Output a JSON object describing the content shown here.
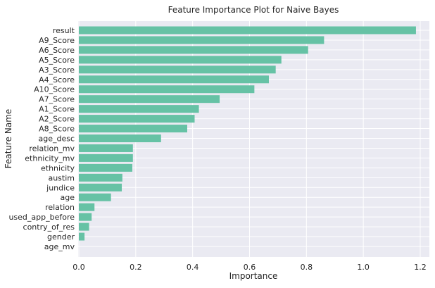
{
  "chart_data": {
    "type": "bar",
    "orientation": "horizontal",
    "title": "Feature Importance Plot for Naive Bayes",
    "xlabel": "Importance",
    "ylabel": "Feature Name",
    "xlim": [
      0,
      1.24
    ],
    "xticks": [
      0.0,
      0.2,
      0.4,
      0.6,
      0.8,
      1.0,
      1.2
    ],
    "xtick_labels": [
      "0.0",
      "0.2",
      "0.4",
      "0.6",
      "0.8",
      "1.0",
      "1.2"
    ],
    "grid": true,
    "categories": [
      "result",
      "A9_Score",
      "A6_Score",
      "A5_Score",
      "A3_Score",
      "A4_Score",
      "A10_Score",
      "A7_Score",
      "A1_Score",
      "A2_Score",
      "A8_Score",
      "age_desc",
      "relation_mv",
      "ethnicity_mv",
      "ethnicity",
      "austim",
      "jundice",
      "age",
      "relation",
      "used_app_before",
      "contry_of_res",
      "gender",
      "age_mv"
    ],
    "values": [
      1.185,
      0.862,
      0.806,
      0.712,
      0.692,
      0.668,
      0.617,
      0.495,
      0.422,
      0.407,
      0.381,
      0.289,
      0.19,
      0.19,
      0.188,
      0.153,
      0.151,
      0.113,
      0.055,
      0.045,
      0.036,
      0.02,
      0.0
    ],
    "bar_color": "#66c2a5",
    "background_color": "#eaeaf2"
  }
}
